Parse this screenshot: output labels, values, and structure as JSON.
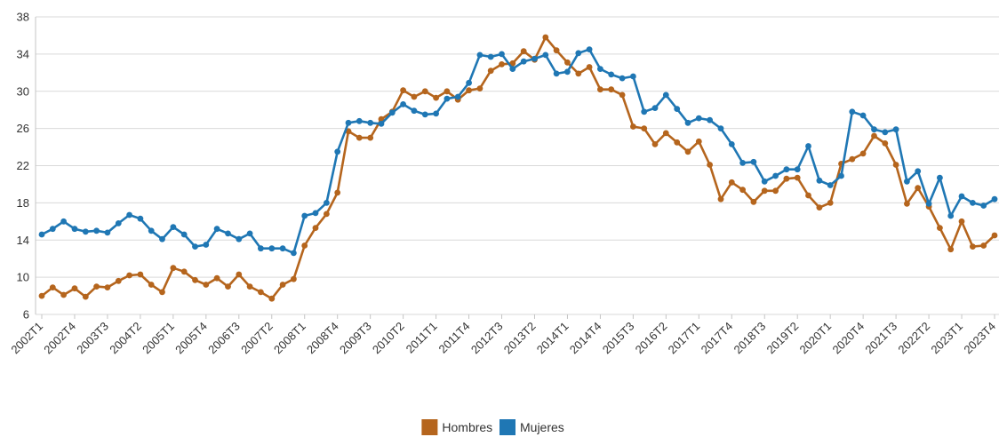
{
  "chart_data": {
    "type": "line",
    "title": "",
    "xlabel": "",
    "ylabel": "",
    "ylim": [
      6,
      38
    ],
    "yticks": [
      6,
      10,
      14,
      18,
      22,
      26,
      30,
      34,
      38
    ],
    "grid": true,
    "legend_position": "bottom-center",
    "x": [
      "2002T1",
      "2002T2",
      "2002T3",
      "2002T4",
      "2003T1",
      "2003T2",
      "2003T3",
      "2003T4",
      "2004T1",
      "2004T2",
      "2004T3",
      "2004T4",
      "2005T1",
      "2005T2",
      "2005T3",
      "2005T4",
      "2006T1",
      "2006T2",
      "2006T3",
      "2006T4",
      "2007T1",
      "2007T2",
      "2007T3",
      "2007T4",
      "2008T1",
      "2008T2",
      "2008T3",
      "2008T4",
      "2009T1",
      "2009T2",
      "2009T3",
      "2009T4",
      "2010T1",
      "2010T2",
      "2010T3",
      "2010T4",
      "2011T1",
      "2011T2",
      "2011T3",
      "2011T4",
      "2012T1",
      "2012T2",
      "2012T3",
      "2012T4",
      "2013T1",
      "2013T2",
      "2013T3",
      "2013T4",
      "2014T1",
      "2014T2",
      "2014T3",
      "2014T4",
      "2015T1",
      "2015T2",
      "2015T3",
      "2015T4",
      "2016T1",
      "2016T2",
      "2016T3",
      "2016T4",
      "2017T1",
      "2017T2",
      "2017T3",
      "2017T4",
      "2018T1",
      "2018T2",
      "2018T3",
      "2018T4",
      "2019T1",
      "2019T2",
      "2019T3",
      "2019T4",
      "2020T1",
      "2020T2",
      "2020T3",
      "2020T4",
      "2021T1",
      "2021T2",
      "2021T3",
      "2021T4",
      "2022T1",
      "2022T2",
      "2022T3",
      "2022T4",
      "2023T1",
      "2023T2",
      "2023T3",
      "2023T4"
    ],
    "xtick_labels": [
      "2002T1",
      "2002T4",
      "2003T3",
      "2004T2",
      "2005T1",
      "2005T4",
      "2006T3",
      "2007T2",
      "2008T1",
      "2008T4",
      "2009T3",
      "2010T2",
      "2011T1",
      "2011T4",
      "2012T3",
      "2013T2",
      "2014T1",
      "2014T4",
      "2015T3",
      "2016T2",
      "2017T1",
      "2017T4",
      "2018T3",
      "2019T2",
      "2020T1",
      "2020T4",
      "2021T3",
      "2022T2",
      "2023T1",
      "2023T4"
    ],
    "series": [
      {
        "name": "Hombres",
        "color": "#b5651d",
        "values": [
          8.0,
          8.9,
          8.1,
          8.8,
          7.9,
          9.0,
          8.9,
          9.6,
          10.2,
          10.3,
          9.2,
          8.4,
          11.0,
          10.6,
          9.7,
          9.2,
          9.9,
          9.0,
          10.3,
          9.0,
          8.4,
          7.7,
          9.2,
          9.8,
          13.4,
          15.3,
          16.8,
          19.1,
          25.7,
          25.0,
          25.0,
          27.0,
          27.8,
          30.1,
          29.4,
          30.0,
          29.3,
          30.0,
          29.1,
          30.1,
          30.3,
          32.2,
          32.9,
          33.0,
          34.3,
          33.4,
          35.8,
          34.4,
          33.1,
          31.9,
          32.6,
          30.2,
          30.2,
          29.6,
          26.2,
          26.0,
          24.3,
          25.5,
          24.5,
          23.5,
          24.6,
          22.1,
          18.4,
          20.2,
          19.4,
          18.1,
          19.3,
          19.3,
          20.6,
          20.7,
          18.8,
          17.5,
          18.0,
          22.2,
          22.7,
          23.3,
          25.2,
          24.4,
          22.1,
          17.9,
          19.6,
          17.6,
          15.3,
          13.0,
          16.0,
          13.3,
          13.4,
          14.5
        ]
      },
      {
        "name": "Mujeres",
        "color": "#1f77b4",
        "values": [
          14.6,
          15.2,
          16.0,
          15.2,
          14.9,
          15.0,
          14.8,
          15.8,
          16.7,
          16.3,
          15.0,
          14.1,
          15.4,
          14.6,
          13.3,
          13.5,
          15.2,
          14.7,
          14.1,
          14.7,
          13.1,
          13.1,
          13.1,
          12.6,
          16.6,
          16.9,
          18.0,
          23.5,
          26.6,
          26.8,
          26.6,
          26.5,
          27.7,
          28.6,
          27.9,
          27.5,
          27.6,
          29.2,
          29.4,
          30.9,
          33.9,
          33.7,
          34.0,
          32.4,
          33.2,
          33.5,
          33.9,
          31.9,
          32.1,
          34.1,
          34.5,
          32.4,
          31.8,
          31.4,
          31.6,
          27.8,
          28.2,
          29.6,
          28.1,
          26.6,
          27.1,
          26.9,
          26.0,
          24.3,
          22.3,
          22.4,
          20.3,
          20.9,
          21.6,
          21.6,
          24.1,
          20.4,
          19.9,
          20.9,
          27.8,
          27.4,
          25.9,
          25.6,
          25.9,
          20.3,
          21.4,
          17.9,
          20.7,
          16.6,
          18.7,
          18.0,
          17.7,
          18.4
        ]
      }
    ]
  }
}
